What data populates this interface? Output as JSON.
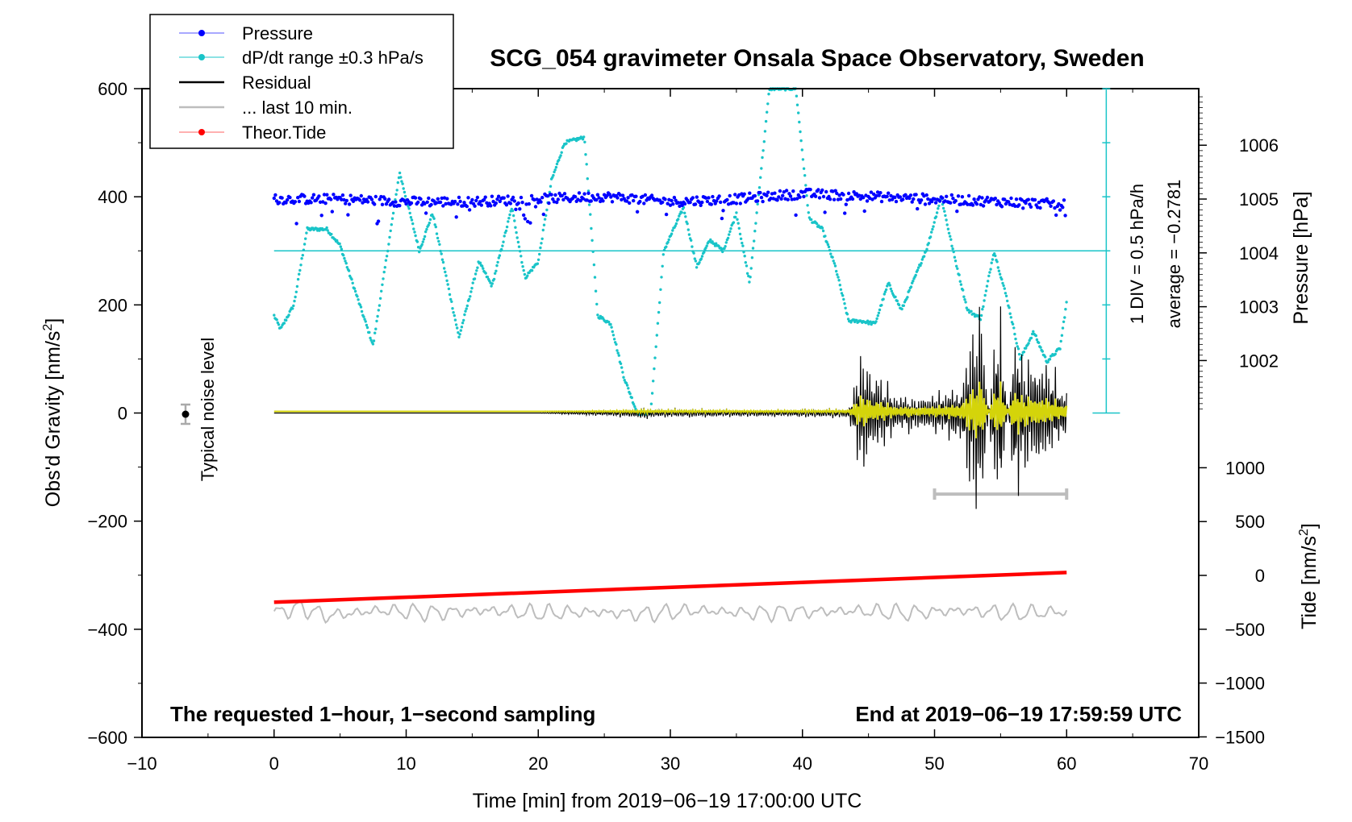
{
  "chart_data": {
    "type": "line",
    "title": "SCG_054 gravimeter Onsala Space Observatory, Sweden",
    "xlabel": "Time [min] from 2019−06−19 17:00:00 UTC",
    "ylabel_left": "Obs'd Gravity [nm/s",
    "ylabel_left_sup": "2",
    "ylabel_left_end": "]",
    "ylabel_right_pressure": "Pressure [hPa]",
    "ylabel_right_tide": "Tide [nm/s",
    "ylabel_right_tide_sup": "2",
    "ylabel_right_tide_end": "]",
    "xlim": [
      -10,
      70
    ],
    "ylim": [
      -600,
      600
    ],
    "x_ticks": [
      "−10",
      "0",
      "10",
      "20",
      "30",
      "40",
      "50",
      "60",
      "70"
    ],
    "y_ticks": [
      "600",
      "400",
      "200",
      "0",
      "−200",
      "−400",
      "−600"
    ],
    "pressure_ticks": [
      "1006",
      "1005",
      "1004",
      "1003",
      "1002"
    ],
    "tide_ticks": [
      "1000",
      "500",
      "0",
      "−500",
      "−1000",
      "−1500"
    ],
    "legend": [
      "Pressure",
      "dP/dt range ±0.3 hPa/s",
      "Residual",
      "... last 10 min.",
      "Theor.Tide"
    ],
    "legend_placement": "top-left",
    "colors": {
      "pressure": "#0000ff",
      "dpdt": "#19c4c8",
      "residual": "#000000",
      "last10": "#bdbdbd",
      "tide": "#ff0000",
      "filtered": "#d4d40a"
    },
    "annotations": {
      "bottom_left": "The requested 1−hour, 1−second sampling",
      "bottom_right": "End at 2019−06−19 17:59:59 UTC",
      "noise": "Typical noise level",
      "div": "1 DIV = 0.5 hPa/h",
      "average": "average = −0.2781"
    },
    "series": [
      {
        "name": "Pressure",
        "x": [
          0,
          5,
          10,
          15,
          20,
          25,
          30,
          35,
          40,
          45,
          50,
          55,
          60
        ],
        "values": [
          1005.0,
          1005.0,
          1004.95,
          1004.95,
          1005.0,
          1005.05,
          1004.95,
          1005.0,
          1005.1,
          1005.05,
          1005.0,
          1004.95,
          1004.9
        ]
      },
      {
        "name": "dP/dt range ±0.3 hPa/s",
        "x": [
          0,
          0.5,
          1.5,
          2.5,
          4,
          5,
          7.5,
          9.5,
          11,
          12,
          14,
          15.5,
          16.5,
          18,
          19,
          20,
          21,
          22,
          23.5,
          24.5,
          25.5,
          26.5,
          27.5,
          28.5,
          29.5,
          31,
          32,
          33,
          34,
          35,
          36,
          37.5,
          38.5,
          39.5,
          40.5,
          41.5,
          42.5,
          43.5,
          44.5,
          45.5,
          46.5,
          47.5,
          48.5,
          49.5,
          50.5,
          51.5,
          52.5,
          53.5,
          54.5,
          55.5,
          56.5,
          57.5,
          58.5,
          59.5,
          60
        ],
        "values": [
          180,
          155,
          200,
          340,
          340,
          310,
          125,
          445,
          300,
          370,
          140,
          280,
          235,
          380,
          250,
          280,
          430,
          500,
          510,
          180,
          165,
          65,
          0,
          0,
          300,
          380,
          270,
          320,
          300,
          370,
          240,
          600,
          600,
          600,
          360,
          340,
          270,
          170,
          170,
          165,
          240,
          190,
          250,
          310,
          400,
          290,
          190,
          175,
          300,
          210,
          100,
          150,
          95,
          120,
          205
        ]
      },
      {
        "name": "Residual",
        "x": [
          0,
          10,
          20,
          24,
          28,
          32,
          36,
          40,
          43.5,
          44.5,
          47,
          50,
          52,
          53.5,
          54.5,
          55,
          56,
          57,
          58,
          59,
          60
        ],
        "values": [
          0,
          0,
          0,
          5,
          12,
          10,
          8,
          10,
          12,
          140,
          45,
          45,
          70,
          290,
          -200,
          -250,
          200,
          120,
          140,
          100,
          60
        ]
      },
      {
        "name": "... last 10 min.",
        "x": [
          0,
          2,
          4,
          8,
          12,
          16,
          20,
          24,
          28,
          32,
          36,
          40,
          44,
          48,
          52,
          56,
          60
        ],
        "values": [
          -370,
          -360,
          -375,
          -365,
          -370,
          -365,
          -370,
          -368,
          -372,
          -365,
          -370,
          -368,
          -366,
          -370,
          -365,
          -370,
          -368
        ]
      },
      {
        "name": "Theor.Tide",
        "x": [
          0,
          60
        ],
        "values": [
          -350,
          -295
        ]
      }
    ],
    "last10_bar": [
      50,
      60
    ],
    "grid": false
  }
}
